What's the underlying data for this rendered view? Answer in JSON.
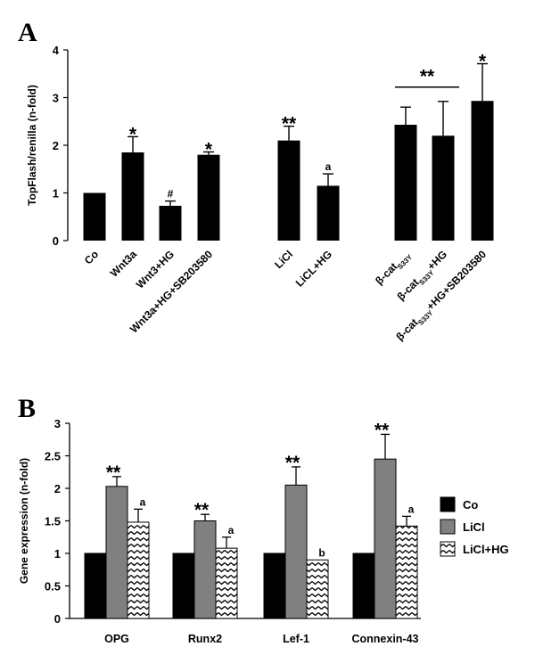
{
  "panels": [
    {
      "letter": "A"
    },
    {
      "letter": "B"
    }
  ],
  "chart_data": [
    {
      "type": "bar",
      "panel": "A",
      "ylabel": "TopFlash/renilla (n-fold)",
      "ylim": [
        0,
        4
      ],
      "yticks": [
        "0",
        "1",
        "2",
        "3",
        "4"
      ],
      "categories": [
        {
          "label": "Co"
        },
        {
          "label": "Wnt3a"
        },
        {
          "label": "Wnt3+HG"
        },
        {
          "label": "Wnt3a+HG+SB203580"
        },
        {
          "label": "LiCl"
        },
        {
          "label": "LiCL+HG"
        },
        {
          "label": "β-cat",
          "sub": "S33Y",
          "suffix": ""
        },
        {
          "label": "β-cat",
          "sub": "S33Y",
          "suffix": "+HG"
        },
        {
          "label": "β-cat",
          "sub": "S33Y",
          "suffix": "+HG+SB203580"
        }
      ],
      "values": [
        1.0,
        1.85,
        0.73,
        1.8,
        2.1,
        1.15,
        2.43,
        2.2,
        2.93
      ],
      "errors": [
        0,
        0.33,
        0.1,
        0.06,
        0.3,
        0.25,
        0.37,
        0.72,
        0.78
      ],
      "annotations": [
        "",
        "*",
        "#",
        "*",
        "**",
        "a",
        "",
        "",
        "*"
      ],
      "bracket": {
        "from_index": 6,
        "to_index": 7,
        "y": 3.22,
        "label": "**"
      }
    },
    {
      "type": "bar",
      "panel": "B",
      "ylabel": "Gene expression (n-fold)",
      "ylim": [
        0,
        3
      ],
      "yticks": [
        "0",
        "0.5",
        "1",
        "1.5",
        "2",
        "2.5",
        "3"
      ],
      "categories": [
        "OPG",
        "Runx2",
        "Lef-1",
        "Connexin-43"
      ],
      "series": [
        {
          "name": "Co",
          "color": "#000000",
          "pattern": "solid",
          "values": [
            1.0,
            1.0,
            1.0,
            1.0
          ],
          "errors": [
            0,
            0,
            0,
            0
          ],
          "annotations": [
            "",
            "",
            "",
            ""
          ]
        },
        {
          "name": "LiCl",
          "color": "#808080",
          "pattern": "solid",
          "values": [
            2.03,
            1.5,
            2.05,
            2.45
          ],
          "errors": [
            0.15,
            0.1,
            0.28,
            0.38
          ],
          "annotations": [
            "**",
            "**",
            "**",
            "**"
          ]
        },
        {
          "name": "LiCl+HG",
          "color": "#ffffff",
          "pattern": "zigzag",
          "values": [
            1.48,
            1.08,
            0.9,
            1.42
          ],
          "errors": [
            0.2,
            0.17,
            0,
            0.15
          ],
          "annotations": [
            "a",
            "a",
            "b",
            "a"
          ]
        }
      ],
      "legend": "right"
    }
  ]
}
